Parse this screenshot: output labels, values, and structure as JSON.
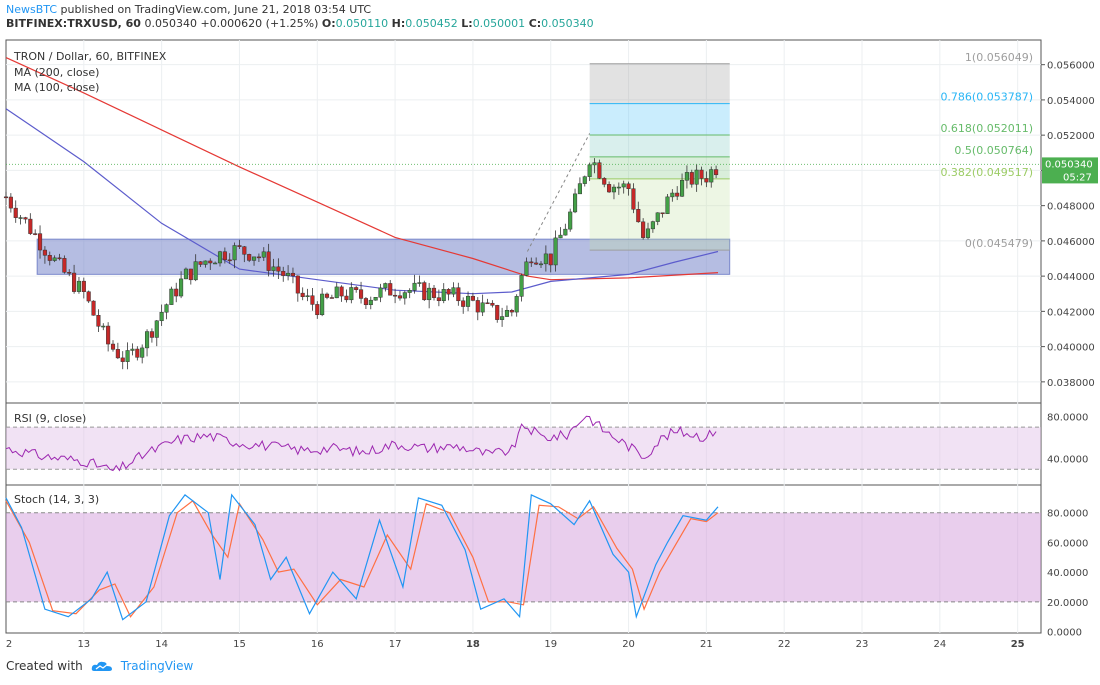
{
  "header": {
    "publisher": "NewsBTC",
    "published_text": "published on TradingView.com, June 21, 2018 03:54 UTC",
    "symbol": "BITFINEX:TRXUSD, 60",
    "last": "0.050340",
    "change": "+0.000620 (+1.25%)",
    "o_label": "O:",
    "o": "0.050110",
    "h_label": "H:",
    "h": "0.050452",
    "l_label": "L:",
    "l": "0.050001",
    "c_label": "C:",
    "c": "0.050340"
  },
  "footer": {
    "created_with": "Created with",
    "brand": "TradingView"
  },
  "colors": {
    "up": "#26a69a",
    "down": "#ef5350",
    "candle_body_up": "#43a047",
    "candle_body_down": "#c62828",
    "ma200": "#e53935",
    "ma100": "#5c5ccc",
    "zone": "#7986cb",
    "rsi": "#9c27b0",
    "stoch_k": "#2196f3",
    "stoch_d": "#ff7043",
    "fib_grey": "#9e9e9e",
    "fib_blue": "#29b6f6",
    "fib_green": "#66bb6a",
    "fib_lime": "#9ccc65",
    "price_tag": "#4caf50"
  },
  "chart_data": {
    "type": "candlestick",
    "title": "TRON / Dollar, 60, BITFINEX",
    "legend": [
      "MA (200, close)",
      "MA (100, close)"
    ],
    "x_ticks": [
      "2",
      "13",
      "14",
      "15",
      "16",
      "17",
      "18",
      "19",
      "20",
      "21",
      "22",
      "23",
      "24",
      "25"
    ],
    "y_ticks": [
      "0.056000",
      "0.054000",
      "0.052000",
      "0.050000",
      "0.048000",
      "0.046000",
      "0.044000",
      "0.042000",
      "0.040000",
      "0.038000"
    ],
    "y_range": [
      0.0368,
      0.0574
    ],
    "x_range_days": [
      12.0,
      25.3
    ],
    "last_price_label": "0.050340",
    "countdown_label": "05:27",
    "candles_ohlc_key_points": [
      [
        12.0,
        0.0485
      ],
      [
        12.4,
        0.0462
      ],
      [
        12.7,
        0.0444
      ],
      [
        13.0,
        0.043
      ],
      [
        13.3,
        0.0402
      ],
      [
        13.55,
        0.0392
      ],
      [
        13.8,
        0.0405
      ],
      [
        14.0,
        0.042
      ],
      [
        14.3,
        0.044
      ],
      [
        14.6,
        0.045
      ],
      [
        14.9,
        0.0455
      ],
      [
        15.2,
        0.0453
      ],
      [
        15.6,
        0.044
      ],
      [
        15.8,
        0.0428
      ],
      [
        16.0,
        0.0423
      ],
      [
        16.3,
        0.043
      ],
      [
        16.6,
        0.0428
      ],
      [
        17.0,
        0.0433
      ],
      [
        17.4,
        0.0431
      ],
      [
        17.8,
        0.0428
      ],
      [
        18.0,
        0.0425
      ],
      [
        18.3,
        0.0418
      ],
      [
        18.5,
        0.042
      ],
      [
        18.6,
        0.0437
      ],
      [
        18.75,
        0.0453
      ],
      [
        19.0,
        0.045
      ],
      [
        19.3,
        0.048
      ],
      [
        19.5,
        0.0508
      ],
      [
        19.75,
        0.0492
      ],
      [
        20.0,
        0.049
      ],
      [
        20.2,
        0.046
      ],
      [
        20.4,
        0.0475
      ],
      [
        20.6,
        0.049
      ],
      [
        20.8,
        0.0495
      ],
      [
        21.0,
        0.0497
      ],
      [
        21.15,
        0.0503
      ]
    ],
    "ma200_points": [
      [
        12.0,
        0.0564
      ],
      [
        13.0,
        0.0544
      ],
      [
        14.0,
        0.0523
      ],
      [
        15.0,
        0.0502
      ],
      [
        16.0,
        0.0482
      ],
      [
        17.0,
        0.0462
      ],
      [
        18.0,
        0.045
      ],
      [
        18.7,
        0.044
      ],
      [
        19.0,
        0.0438
      ],
      [
        20.0,
        0.0439
      ],
      [
        21.15,
        0.0442
      ]
    ],
    "ma100_points": [
      [
        12.0,
        0.0535
      ],
      [
        13.0,
        0.0505
      ],
      [
        14.0,
        0.047
      ],
      [
        15.0,
        0.0444
      ],
      [
        16.0,
        0.0438
      ],
      [
        17.0,
        0.0432
      ],
      [
        18.0,
        0.043
      ],
      [
        18.5,
        0.0431
      ],
      [
        19.0,
        0.0437
      ],
      [
        20.0,
        0.0441
      ],
      [
        20.6,
        0.0448
      ],
      [
        21.15,
        0.0454
      ]
    ],
    "zone": {
      "from_day": 12.4,
      "to_day": 21.3,
      "top": 0.0461,
      "bottom": 0.0441
    },
    "fibonacci": {
      "from_day": 19.5,
      "to_day": 21.3,
      "levels": [
        {
          "label": "1(0.056049)",
          "value": 0.056049
        },
        {
          "label": "0.786(0.053787)",
          "value": 0.053787
        },
        {
          "label": "0.618(0.052011)",
          "value": 0.052011
        },
        {
          "label": "0.5(0.050764)",
          "value": 0.050764
        },
        {
          "label": "0.382(0.049517)",
          "value": 0.049517
        },
        {
          "label": "0(0.045479)",
          "value": 0.045479
        }
      ]
    },
    "rsi": {
      "label": "RSI (9, close)",
      "y_ticks": [
        "80.0000",
        "40.0000"
      ],
      "y_range": [
        15,
        92
      ],
      "band": [
        70,
        30
      ],
      "points": [
        [
          12.0,
          50
        ],
        [
          12.5,
          42
        ],
        [
          13.0,
          38
        ],
        [
          13.4,
          28
        ],
        [
          13.8,
          45
        ],
        [
          14.2,
          58
        ],
        [
          14.6,
          62
        ],
        [
          15.0,
          55
        ],
        [
          15.4,
          52
        ],
        [
          15.8,
          48
        ],
        [
          16.2,
          50
        ],
        [
          16.6,
          46
        ],
        [
          17.0,
          54
        ],
        [
          17.4,
          50
        ],
        [
          17.8,
          52
        ],
        [
          18.2,
          44
        ],
        [
          18.5,
          48
        ],
        [
          18.65,
          72
        ],
        [
          18.9,
          60
        ],
        [
          19.2,
          62
        ],
        [
          19.45,
          82
        ],
        [
          19.7,
          66
        ],
        [
          20.0,
          52
        ],
        [
          20.2,
          42
        ],
        [
          20.4,
          58
        ],
        [
          20.6,
          66
        ],
        [
          20.8,
          64
        ],
        [
          21.0,
          60
        ],
        [
          21.15,
          70
        ]
      ]
    },
    "stoch": {
      "label": "Stoch (14, 3, 3)",
      "y_ticks": [
        "80.0000",
        "60.0000",
        "40.0000",
        "20.0000",
        "0.0000"
      ],
      "y_range": [
        -1,
        98
      ],
      "band": [
        80,
        20
      ],
      "k_points": [
        [
          12.0,
          90
        ],
        [
          12.2,
          70
        ],
        [
          12.5,
          15
        ],
        [
          12.8,
          10
        ],
        [
          13.1,
          22
        ],
        [
          13.3,
          40
        ],
        [
          13.5,
          8
        ],
        [
          13.8,
          20
        ],
        [
          14.1,
          78
        ],
        [
          14.3,
          92
        ],
        [
          14.6,
          80
        ],
        [
          14.75,
          35
        ],
        [
          14.9,
          92
        ],
        [
          15.2,
          72
        ],
        [
          15.4,
          35
        ],
        [
          15.6,
          50
        ],
        [
          15.9,
          12
        ],
        [
          16.2,
          40
        ],
        [
          16.5,
          22
        ],
        [
          16.8,
          75
        ],
        [
          17.1,
          30
        ],
        [
          17.3,
          90
        ],
        [
          17.6,
          85
        ],
        [
          17.9,
          55
        ],
        [
          18.1,
          15
        ],
        [
          18.4,
          22
        ],
        [
          18.6,
          10
        ],
        [
          18.75,
          92
        ],
        [
          19.0,
          86
        ],
        [
          19.3,
          72
        ],
        [
          19.5,
          88
        ],
        [
          19.8,
          52
        ],
        [
          20.0,
          40
        ],
        [
          20.1,
          10
        ],
        [
          20.35,
          45
        ],
        [
          20.5,
          60
        ],
        [
          20.7,
          78
        ],
        [
          21.0,
          75
        ],
        [
          21.15,
          84
        ]
      ],
      "d_points": [
        [
          12.0,
          88
        ],
        [
          12.3,
          60
        ],
        [
          12.6,
          14
        ],
        [
          12.9,
          12
        ],
        [
          13.2,
          28
        ],
        [
          13.4,
          32
        ],
        [
          13.6,
          10
        ],
        [
          13.9,
          30
        ],
        [
          14.2,
          80
        ],
        [
          14.4,
          88
        ],
        [
          14.65,
          65
        ],
        [
          14.85,
          50
        ],
        [
          15.0,
          86
        ],
        [
          15.3,
          62
        ],
        [
          15.5,
          40
        ],
        [
          15.7,
          42
        ],
        [
          16.0,
          18
        ],
        [
          16.3,
          35
        ],
        [
          16.6,
          30
        ],
        [
          16.9,
          65
        ],
        [
          17.2,
          42
        ],
        [
          17.4,
          86
        ],
        [
          17.7,
          80
        ],
        [
          18.0,
          50
        ],
        [
          18.2,
          20
        ],
        [
          18.45,
          20
        ],
        [
          18.65,
          18
        ],
        [
          18.85,
          85
        ],
        [
          19.1,
          84
        ],
        [
          19.35,
          76
        ],
        [
          19.55,
          84
        ],
        [
          19.85,
          56
        ],
        [
          20.05,
          42
        ],
        [
          20.2,
          15
        ],
        [
          20.4,
          40
        ],
        [
          20.6,
          58
        ],
        [
          20.8,
          76
        ],
        [
          21.0,
          74
        ],
        [
          21.15,
          80
        ]
      ]
    }
  }
}
